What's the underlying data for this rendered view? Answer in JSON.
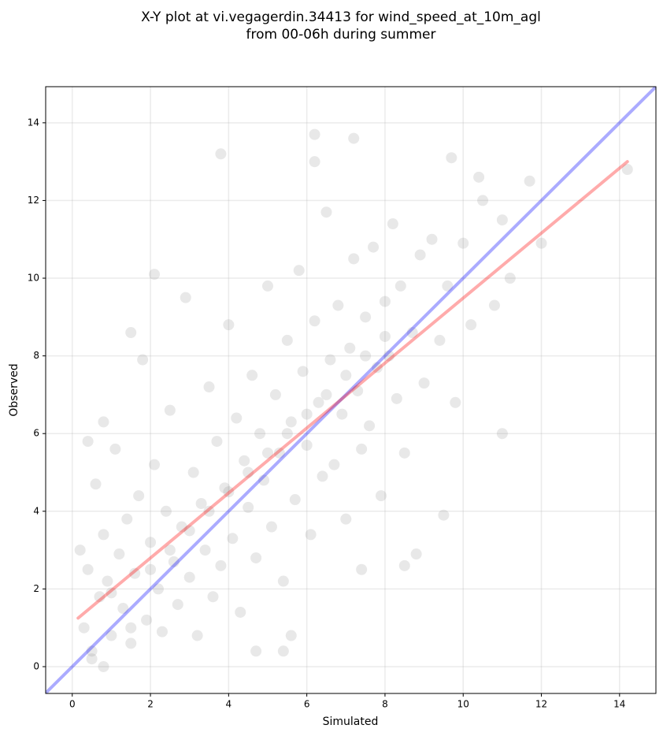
{
  "chart_data": {
    "type": "scatter",
    "title": [
      "X-Y plot at vi.vegagerdin.34413 for wind_speed_at_10m_agl",
      "from 00-06h during summer"
    ],
    "x_label": "Simulated",
    "y_label": "Observed",
    "xlim": [
      -0.68,
      14.93
    ],
    "ylim": [
      -0.69,
      14.93
    ],
    "xticks": [
      0,
      2,
      4,
      6,
      8,
      10,
      12,
      14
    ],
    "yticks": [
      0,
      2,
      4,
      6,
      8,
      10,
      12,
      14
    ],
    "grid": true,
    "series": [
      {
        "color": "#808080",
        "x": [
          0.2,
          0.3,
          0.4,
          0.5,
          0.6,
          0.7,
          0.8,
          0.9,
          1.0,
          1.1,
          1.2,
          1.3,
          1.4,
          1.5,
          1.6,
          1.7,
          1.8,
          1.9,
          2.0,
          2.1,
          2.2,
          2.3,
          2.4,
          2.5,
          2.6,
          2.7,
          2.8,
          2.9,
          3.0,
          3.1,
          3.2,
          3.3,
          3.4,
          3.5,
          3.6,
          3.7,
          3.8,
          3.9,
          4.0,
          4.1,
          4.2,
          4.3,
          4.4,
          4.5,
          4.6,
          4.7,
          4.8,
          4.9,
          5.0,
          5.1,
          5.2,
          5.3,
          5.4,
          5.5,
          5.6,
          5.7,
          5.8,
          5.9,
          6.0,
          6.1,
          6.2,
          6.3,
          6.4,
          6.5,
          6.6,
          6.7,
          6.8,
          6.9,
          7.0,
          7.1,
          7.2,
          7.3,
          7.4,
          7.5,
          7.6,
          7.7,
          7.8,
          7.9,
          8.0,
          8.1,
          8.2,
          8.3,
          8.4,
          8.5,
          8.7,
          8.9,
          9.0,
          9.2,
          9.4,
          9.6,
          9.8,
          10.0,
          10.2,
          10.5,
          10.8,
          11.0,
          11.2,
          3.8,
          6.2,
          7.2,
          6.2,
          14.2,
          11.7,
          9.7,
          10.4,
          2.1,
          1.5,
          12.0,
          11.0,
          9.5,
          8.8,
          8.5,
          7.4,
          0.8,
          0.4,
          0.8,
          5.4,
          5.6,
          4.7,
          0.5,
          1.0,
          1.5,
          2.0,
          2.5,
          3.0,
          3.5,
          4.0,
          4.5,
          5.0,
          5.5,
          6.0,
          6.5,
          7.0,
          7.5,
          8.0
        ],
        "values": [
          3.0,
          1.0,
          2.5,
          0.2,
          4.7,
          1.8,
          3.4,
          2.2,
          0.8,
          5.6,
          2.9,
          1.5,
          3.8,
          0.6,
          2.4,
          4.4,
          7.9,
          1.2,
          3.2,
          5.2,
          2.0,
          0.9,
          4.0,
          6.6,
          2.7,
          1.6,
          3.6,
          9.5,
          2.3,
          5.0,
          0.8,
          4.2,
          3.0,
          7.2,
          1.8,
          5.8,
          2.6,
          4.6,
          8.8,
          3.3,
          6.4,
          1.4,
          5.3,
          4.1,
          7.5,
          2.8,
          6.0,
          4.8,
          9.8,
          3.6,
          7.0,
          5.5,
          2.2,
          8.4,
          6.3,
          4.3,
          10.2,
          7.6,
          5.7,
          3.4,
          8.9,
          6.8,
          4.9,
          11.7,
          7.9,
          5.2,
          9.3,
          6.5,
          3.8,
          8.2,
          10.5,
          7.1,
          5.6,
          9.0,
          6.2,
          10.8,
          7.7,
          4.4,
          9.4,
          8.0,
          11.4,
          6.9,
          9.8,
          5.5,
          8.6,
          10.6,
          7.3,
          11.0,
          8.4,
          9.8,
          6.8,
          10.9,
          8.8,
          12.0,
          9.3,
          11.5,
          10.0,
          13.2,
          13.7,
          13.6,
          13.0,
          12.8,
          12.5,
          13.1,
          12.6,
          10.1,
          8.6,
          10.9,
          6.0,
          3.9,
          2.9,
          2.6,
          2.5,
          0.0,
          5.8,
          6.3,
          0.4,
          0.8,
          0.4,
          0.4,
          1.9,
          1.0,
          2.5,
          3.0,
          3.5,
          4.0,
          4.5,
          5.0,
          5.5,
          6.0,
          6.5,
          7.0,
          7.5,
          8.0,
          8.5
        ]
      }
    ],
    "lines": [
      {
        "color": "#0000ff",
        "x": [
          -0.68,
          14.93
        ],
        "values": [
          -0.68,
          14.93
        ]
      },
      {
        "color": "#ff0000",
        "x": [
          0.15,
          14.2
        ],
        "values": [
          1.25,
          13.0
        ]
      }
    ]
  }
}
